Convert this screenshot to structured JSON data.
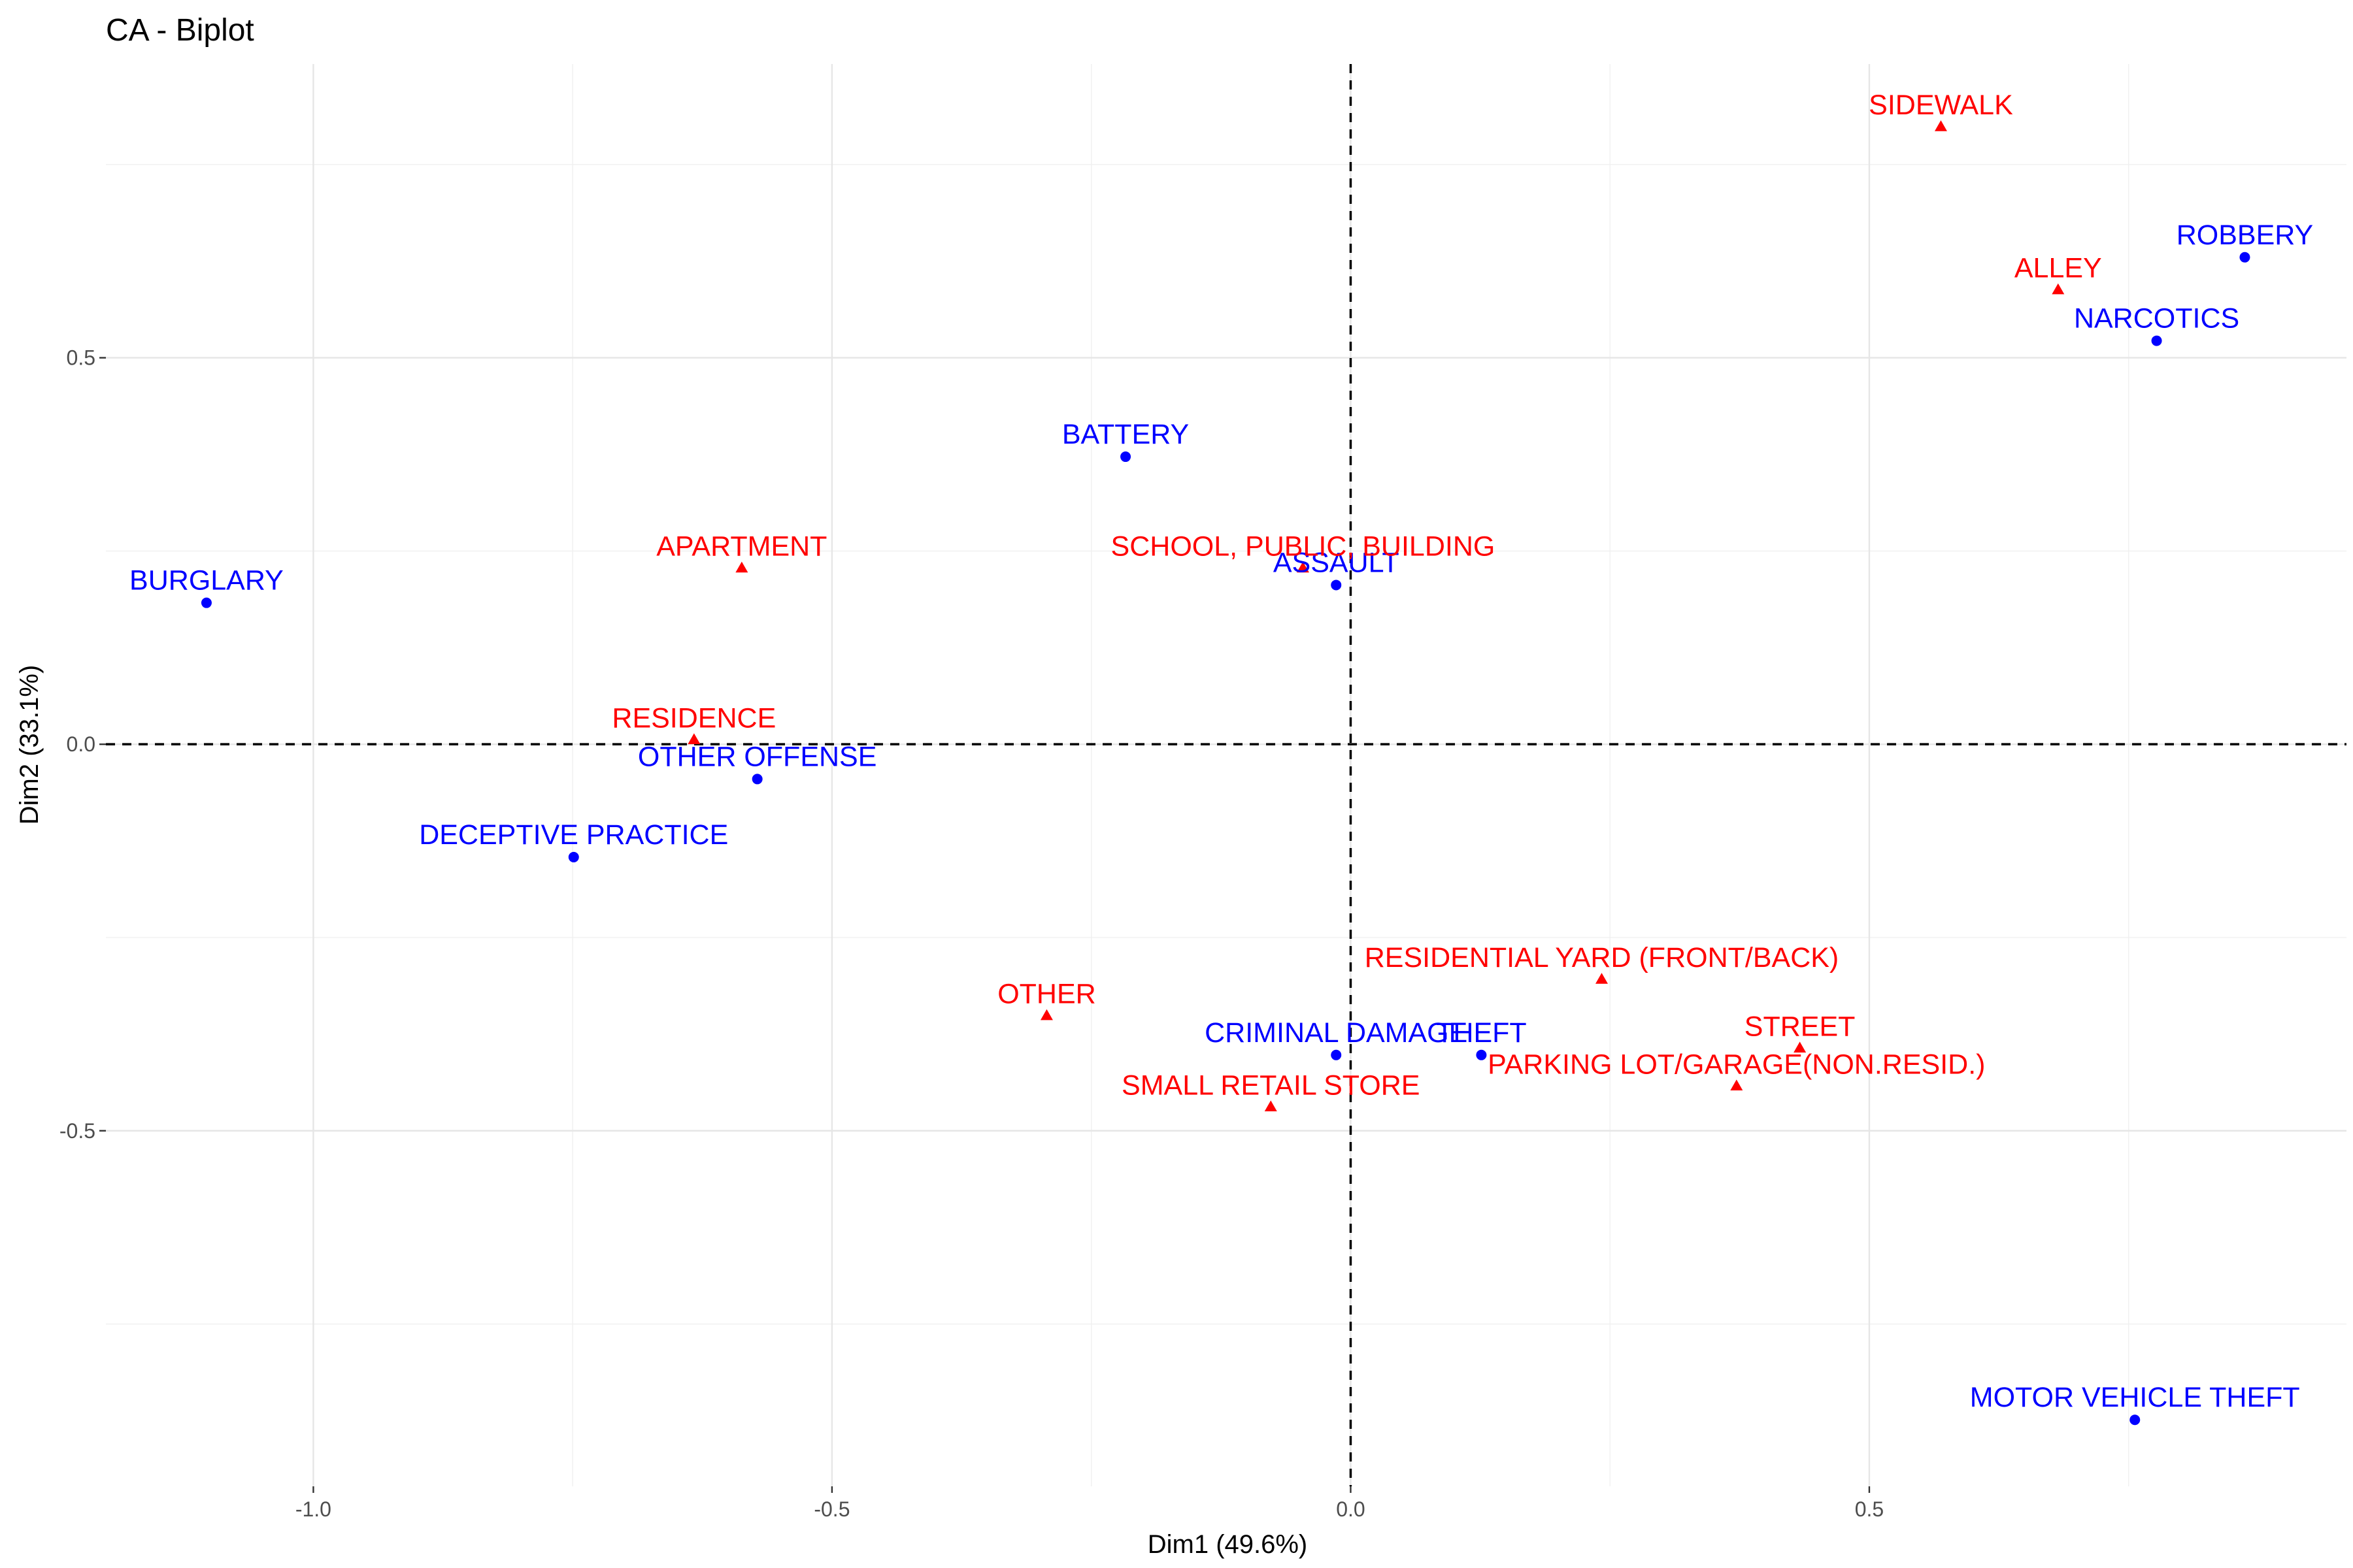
{
  "chart_data": {
    "type": "scatter",
    "title": "CA - Biplot",
    "xlabel": "Dim1 (49.6%)",
    "ylabel": "Dim2 (33.1%)",
    "xlim": [
      -1.2,
      0.96
    ],
    "ylim": [
      -0.96,
      0.88
    ],
    "xticks": [
      -1.0,
      -0.5,
      0.0,
      0.5
    ],
    "xtick_labels": [
      "-1.0",
      "-0.5",
      "0.0",
      "0.5"
    ],
    "yticks": [
      -0.5,
      0.0,
      0.5
    ],
    "ytick_labels": [
      "-0.5",
      "0.0",
      "0.5"
    ],
    "grid": true,
    "reference_lines": [
      0,
      0
    ],
    "colors": {
      "rows": "#0000ff",
      "columns": "#ff0000"
    },
    "series": [
      {
        "marker": "circle",
        "color": "#0000ff",
        "points": [
          {
            "label": "ROBBERY",
            "x": 0.862,
            "y": 0.63
          },
          {
            "label": "NARCOTICS",
            "x": 0.777,
            "y": 0.522
          },
          {
            "label": "BATTERY",
            "x": -0.217,
            "y": 0.372
          },
          {
            "label": "ASSAULT",
            "x": -0.014,
            "y": 0.206
          },
          {
            "label": "BURGLARY",
            "x": -1.103,
            "y": 0.183
          },
          {
            "label": "OTHER OFFENSE",
            "x": -0.572,
            "y": -0.045
          },
          {
            "label": "DECEPTIVE PRACTICE",
            "x": -0.749,
            "y": -0.146
          },
          {
            "label": "CRIMINAL DAMAGE",
            "x": -0.014,
            "y": -0.402
          },
          {
            "label": "THEFT",
            "x": 0.126,
            "y": -0.402
          },
          {
            "label": "MOTOR VEHICLE THEFT",
            "x": 0.756,
            "y": -0.874
          }
        ]
      },
      {
        "marker": "triangle",
        "color": "#ff0000",
        "points": [
          {
            "label": "SIDEWALK",
            "x": 0.569,
            "y": 0.798
          },
          {
            "label": "ALLEY",
            "x": 0.682,
            "y": 0.587
          },
          {
            "label": "APARTMENT",
            "x": -0.587,
            "y": 0.227
          },
          {
            "label": "SCHOOL, PUBLIC, BUILDING",
            "x": -0.046,
            "y": 0.227
          },
          {
            "label": "RESIDENCE",
            "x": -0.633,
            "y": 0.005
          },
          {
            "label": "RESIDENTIAL YARD (FRONT/BACK)",
            "x": 0.242,
            "y": -0.305
          },
          {
            "label": "OTHER",
            "x": -0.293,
            "y": -0.352
          },
          {
            "label": "STREET",
            "x": 0.433,
            "y": -0.394
          },
          {
            "label": "PARKING LOT/GARAGE(NON.RESID.)",
            "x": 0.372,
            "y": -0.443
          },
          {
            "label": "SMALL RETAIL STORE",
            "x": -0.077,
            "y": -0.47
          }
        ]
      }
    ]
  }
}
